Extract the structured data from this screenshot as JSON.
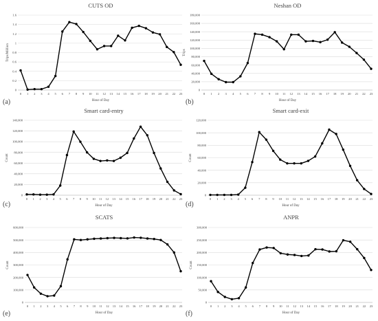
{
  "chart_data": [
    {
      "type": "line",
      "title": "CUTS OD",
      "panel_label": "(a)",
      "xlabel": "Hour of Day",
      "ylabel": "Trips/Million",
      "ylim": [
        0,
        1.6
      ],
      "yticks": [
        0,
        0.2,
        0.4,
        0.6,
        0.8,
        1,
        1.2,
        1.4,
        1.6
      ],
      "ytick_labels": [
        "0",
        "0.2",
        "0.4",
        "0.6",
        "0.8",
        "1",
        "1.2",
        "1.4",
        "1.6"
      ],
      "x": [
        0,
        1,
        2,
        3,
        4,
        5,
        6,
        7,
        8,
        9,
        10,
        11,
        12,
        13,
        14,
        15,
        16,
        17,
        18,
        19,
        20,
        21,
        22,
        23
      ],
      "series": [
        {
          "values": [
            0.42,
            0.01,
            0.02,
            0.02,
            0.07,
            0.3,
            1.25,
            1.45,
            1.41,
            1.24,
            1.05,
            0.87,
            0.94,
            0.94,
            1.16,
            1.06,
            1.33,
            1.37,
            1.32,
            1.23,
            1.19,
            0.92,
            0.81,
            0.54
          ]
        }
      ],
      "grid": true
    },
    {
      "type": "line",
      "title": "Neshan OD",
      "panel_label": "(b)",
      "xlabel": "Hour of Day",
      "ylabel": "Trips",
      "ylim": [
        0,
        180000
      ],
      "yticks": [
        0,
        20000,
        40000,
        60000,
        80000,
        100000,
        120000,
        140000,
        160000,
        180000
      ],
      "ytick_labels": [
        "0",
        "20,000",
        "40,000",
        "60,000",
        "80,000",
        "100,000",
        "120,000",
        "140,000",
        "160,000",
        "180,000"
      ],
      "x": [
        0,
        1,
        2,
        3,
        4,
        5,
        6,
        7,
        8,
        9,
        10,
        11,
        12,
        13,
        14,
        15,
        16,
        17,
        18,
        19,
        20,
        21,
        22,
        23
      ],
      "series": [
        {
          "values": [
            70000,
            39000,
            26000,
            19000,
            19000,
            33000,
            65000,
            135000,
            133000,
            127000,
            117000,
            98000,
            133000,
            133000,
            117000,
            118000,
            115000,
            121000,
            139000,
            114000,
            104000,
            89000,
            73000,
            51000
          ]
        }
      ],
      "grid": true
    },
    {
      "type": "line",
      "title": "Smart card-entry",
      "panel_label": "(c)",
      "xlabel": "Hour of Day",
      "ylabel": "Count",
      "ylim": [
        0,
        140000
      ],
      "yticks": [
        0,
        20000,
        40000,
        60000,
        80000,
        100000,
        120000,
        140000
      ],
      "ytick_labels": [
        "0",
        "20,000",
        "40,000",
        "60,000",
        "80,000",
        "100,000",
        "120,000",
        "140,000"
      ],
      "x": [
        0,
        1,
        2,
        3,
        4,
        5,
        6,
        7,
        8,
        9,
        10,
        11,
        12,
        13,
        14,
        15,
        16,
        17,
        18,
        19,
        20,
        21,
        22,
        23
      ],
      "series": [
        {
          "values": [
            1500,
            1500,
            1000,
            1000,
            1500,
            18000,
            75000,
            119000,
            100000,
            80000,
            68000,
            64000,
            65000,
            64000,
            70000,
            79000,
            106000,
            128000,
            112000,
            79000,
            50000,
            25000,
            9000,
            2000
          ]
        }
      ],
      "grid": true
    },
    {
      "type": "line",
      "title": "Smart card-exit",
      "panel_label": "(d)",
      "xlabel": "Hour of Day",
      "ylabel": "Count",
      "ylim": [
        0,
        120000
      ],
      "yticks": [
        0,
        20000,
        40000,
        60000,
        80000,
        100000,
        120000
      ],
      "ytick_labels": [
        "0",
        "20,000",
        "40,000",
        "60,000",
        "80,000",
        "100,000",
        "120,000"
      ],
      "x": [
        0,
        1,
        2,
        3,
        4,
        5,
        6,
        7,
        8,
        9,
        10,
        11,
        12,
        13,
        14,
        15,
        16,
        17,
        18,
        19,
        20,
        21,
        22,
        23
      ],
      "series": [
        {
          "values": [
            500,
            500,
            500,
            500,
            1000,
            12000,
            53000,
            101000,
            89000,
            71000,
            57000,
            51000,
            51000,
            51000,
            55000,
            62000,
            83000,
            105000,
            98000,
            73000,
            47000,
            24000,
            10000,
            2000
          ]
        }
      ],
      "grid": true
    },
    {
      "type": "line",
      "title": "SCATS",
      "panel_label": "(e)",
      "xlabel": "Hour of Day",
      "ylabel": "Count",
      "ylim": [
        0,
        600000
      ],
      "yticks": [
        0,
        100000,
        200000,
        300000,
        400000,
        500000,
        600000
      ],
      "ytick_labels": [
        "0",
        "100,000",
        "200,000",
        "300,000",
        "400,000",
        "500,000",
        "600,000"
      ],
      "x": [
        0,
        1,
        2,
        3,
        4,
        5,
        6,
        7,
        8,
        9,
        10,
        11,
        12,
        13,
        14,
        15,
        16,
        17,
        18,
        19,
        20,
        21,
        22,
        23
      ],
      "series": [
        {
          "values": [
            220000,
            120000,
            70000,
            50000,
            55000,
            130000,
            345000,
            505000,
            500000,
            505000,
            510000,
            512000,
            515000,
            517000,
            515000,
            513000,
            520000,
            518000,
            512000,
            508000,
            500000,
            465000,
            400000,
            250000
          ]
        }
      ],
      "grid": true
    },
    {
      "type": "line",
      "title": "ANPR",
      "panel_label": "(f)",
      "xlabel": "Hour of Day",
      "ylabel": "Count",
      "ylim": [
        0,
        300000
      ],
      "yticks": [
        0,
        50000,
        100000,
        150000,
        200000,
        250000,
        300000
      ],
      "ytick_labels": [
        "0",
        "50,000",
        "100,000",
        "150,000",
        "200,000",
        "250,000",
        "300,000"
      ],
      "x": [
        0,
        1,
        2,
        3,
        4,
        5,
        6,
        7,
        8,
        9,
        10,
        11,
        12,
        13,
        14,
        15,
        16,
        17,
        18,
        19,
        20,
        21,
        22,
        23
      ],
      "series": [
        {
          "values": [
            85000,
            42000,
            22000,
            13000,
            17000,
            60000,
            158000,
            212000,
            220000,
            218000,
            197000,
            192000,
            190000,
            186000,
            188000,
            213000,
            212000,
            204000,
            205000,
            249000,
            243000,
            213000,
            178000,
            130000
          ]
        }
      ],
      "grid": true
    }
  ]
}
